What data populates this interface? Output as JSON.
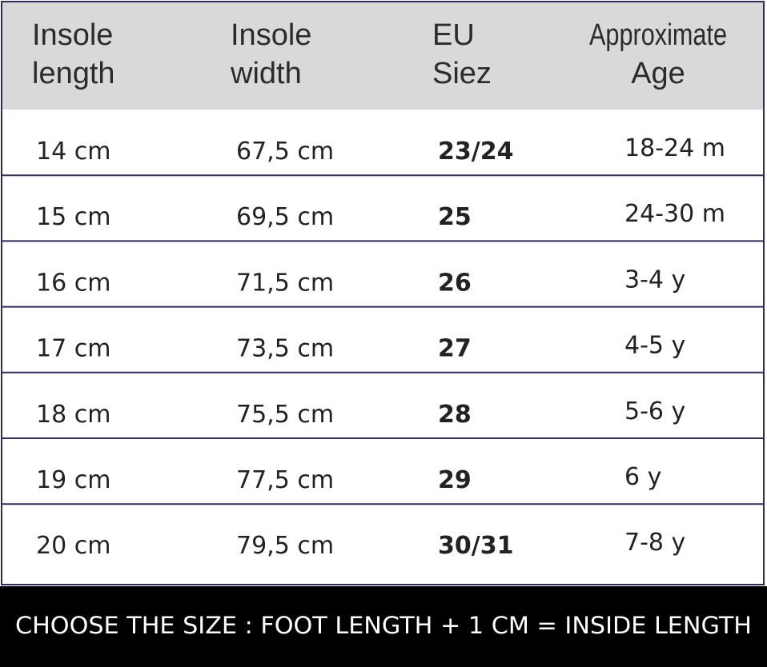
{
  "table": {
    "headers": [
      [
        "Insole",
        "length"
      ],
      [
        "Insole",
        "width"
      ],
      [
        "EU",
        "Siez"
      ],
      [
        "Approximate",
        "Age"
      ]
    ],
    "rows": [
      [
        "14 cm",
        "67,5 cm",
        "23/24",
        "18-24 m"
      ],
      [
        "15 cm",
        "69,5 cm",
        "25",
        "24-30 m"
      ],
      [
        "16 cm",
        "71,5 cm",
        "26",
        "3-4 y"
      ],
      [
        "17 cm",
        "73,5 cm",
        "27",
        "4-5 y"
      ],
      [
        "18 cm",
        "75,5 cm",
        "28",
        "5-6 y"
      ],
      [
        "19 cm",
        "77,5 cm",
        "29",
        "6 y"
      ],
      [
        "20 cm",
        "79,5 cm",
        "30/31",
        "7-8 y"
      ]
    ]
  },
  "footer": {
    "text": "CHOOSE THE SIZE : FOOT LENGTH + 1 CM = INSIDE LENGTH"
  }
}
